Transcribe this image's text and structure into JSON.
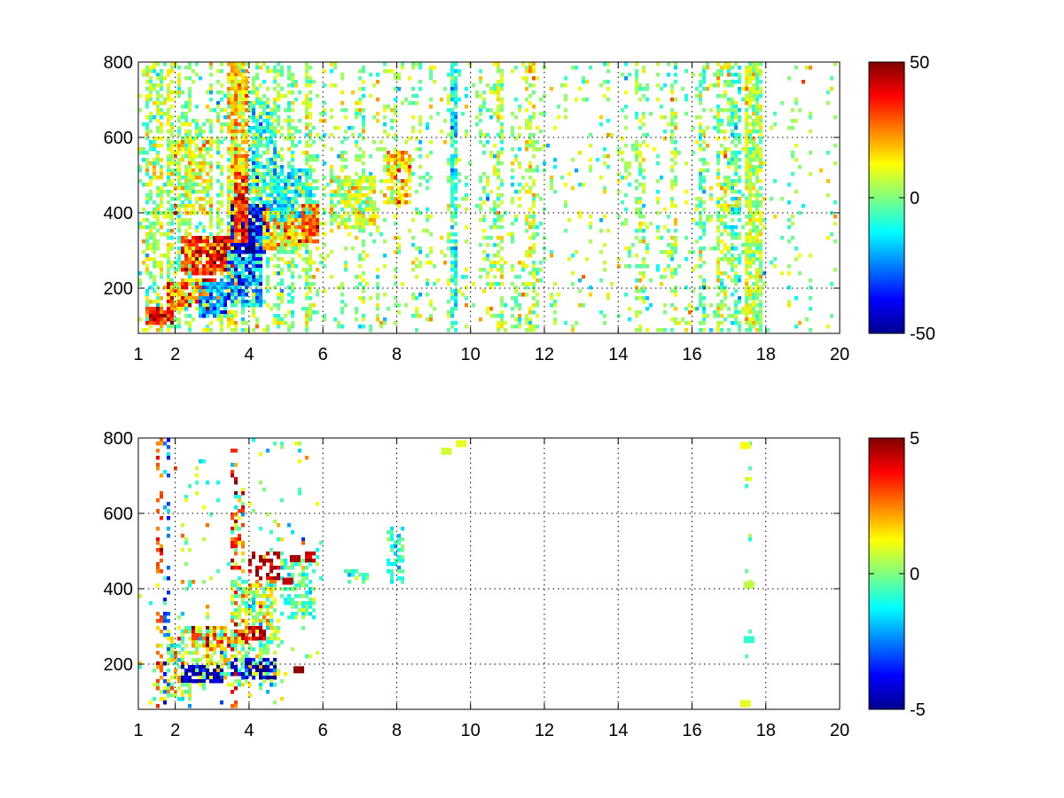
{
  "chart_data": [
    {
      "type": "heatmap",
      "title": "",
      "xlabel": "",
      "ylabel": "",
      "xlim": [
        1,
        20
      ],
      "ylim": [
        80,
        800
      ],
      "xticks": [
        1,
        2,
        4,
        6,
        8,
        10,
        12,
        14,
        16,
        18,
        20
      ],
      "xtick_labels": [
        "1",
        "2",
        "4",
        "6",
        "8",
        "10",
        "12",
        "14",
        "16",
        "18",
        "20"
      ],
      "yticks": [
        200,
        400,
        600,
        800
      ],
      "ytick_labels": [
        "200",
        "400",
        "600",
        "800"
      ],
      "grid": true,
      "colormap": "jet",
      "clim": [
        -50,
        50
      ],
      "colorbar_ticks": [
        -50,
        0,
        50
      ],
      "colorbar_labels": [
        "-50",
        "0",
        "50"
      ],
      "colorbar_position": "right",
      "seed": 11,
      "regions": [
        {
          "x": [
            1.2,
            2.0
          ],
          "y": [
            100,
            150
          ],
          "density": 0.9,
          "value": 35,
          "spread": 10
        },
        {
          "x": [
            1.8,
            3.2
          ],
          "y": [
            140,
            230
          ],
          "density": 0.85,
          "value": 25,
          "spread": 14
        },
        {
          "x": [
            2.2,
            3.6
          ],
          "y": [
            240,
            340
          ],
          "density": 0.9,
          "value": 32,
          "spread": 12
        },
        {
          "x": [
            2.0,
            3.0
          ],
          "y": [
            400,
            600
          ],
          "density": 0.6,
          "value": 12,
          "spread": 10
        },
        {
          "x": [
            2.6,
            3.4
          ],
          "y": [
            120,
            220
          ],
          "density": 0.8,
          "value": -25,
          "spread": 10
        },
        {
          "x": [
            3.4,
            4.4
          ],
          "y": [
            150,
            300
          ],
          "density": 0.8,
          "value": -20,
          "spread": 14
        },
        {
          "x": [
            3.5,
            4.6
          ],
          "y": [
            290,
            420
          ],
          "density": 0.9,
          "value": -40,
          "spread": 10
        },
        {
          "x": [
            3.6,
            4.0
          ],
          "y": [
            320,
            520
          ],
          "density": 0.85,
          "value": 32,
          "spread": 10
        },
        {
          "x": [
            3.5,
            4.0
          ],
          "y": [
            500,
            800
          ],
          "density": 0.8,
          "value": 18,
          "spread": 10
        },
        {
          "x": [
            4.0,
            4.7
          ],
          "y": [
            420,
            700
          ],
          "density": 0.55,
          "value": -8,
          "spread": 10
        },
        {
          "x": [
            4.4,
            5.5
          ],
          "y": [
            300,
            400
          ],
          "density": 0.85,
          "value": 18,
          "spread": 12
        },
        {
          "x": [
            4.6,
            5.8
          ],
          "y": [
            380,
            520
          ],
          "density": 0.7,
          "value": -12,
          "spread": 8
        },
        {
          "x": [
            5.4,
            5.9
          ],
          "y": [
            320,
            420
          ],
          "density": 0.9,
          "value": 28,
          "spread": 8
        },
        {
          "x": [
            6.2,
            7.4
          ],
          "y": [
            360,
            500
          ],
          "density": 0.6,
          "value": 8,
          "spread": 8
        },
        {
          "x": [
            7.7,
            8.4
          ],
          "y": [
            420,
            560
          ],
          "density": 0.7,
          "value": 15,
          "spread": 8
        }
      ],
      "stripe_columns": [
        {
          "x": 1.55,
          "density": 0.55,
          "value": 6
        },
        {
          "x": 1.85,
          "density": 0.5,
          "value": 8
        },
        {
          "x": 3.55,
          "density": 0.6,
          "value": 12
        },
        {
          "x": 5.6,
          "density": 0.5,
          "value": 4
        },
        {
          "x": 7.0,
          "density": 0.3,
          "value": 2
        },
        {
          "x": 9.55,
          "density": 0.75,
          "value": -10
        },
        {
          "x": 10.8,
          "density": 0.35,
          "value": 4
        },
        {
          "x": 11.6,
          "density": 0.35,
          "value": 8
        },
        {
          "x": 14.6,
          "density": 0.3,
          "value": 3
        },
        {
          "x": 15.5,
          "density": 0.35,
          "value": 2
        },
        {
          "x": 16.3,
          "density": 0.45,
          "value": -3
        },
        {
          "x": 16.8,
          "density": 0.45,
          "value": 5
        },
        {
          "x": 17.2,
          "density": 0.5,
          "value": -5
        },
        {
          "x": 17.5,
          "density": 0.75,
          "value": 8
        },
        {
          "x": 17.75,
          "density": 0.7,
          "value": 4
        }
      ],
      "background_density": [
        {
          "x": [
            1,
            6
          ],
          "density": 0.3
        },
        {
          "x": [
            6,
            12
          ],
          "density": 0.14
        },
        {
          "x": [
            12,
            16
          ],
          "density": 0.08
        },
        {
          "x": [
            16,
            18
          ],
          "density": 0.22
        },
        {
          "x": [
            18,
            20
          ],
          "density": 0.05
        }
      ],
      "background_value": 2,
      "background_spread": 9
    },
    {
      "type": "heatmap",
      "title": "",
      "xlabel": "",
      "ylabel": "",
      "xlim": [
        1,
        20
      ],
      "ylim": [
        80,
        800
      ],
      "xticks": [
        1,
        2,
        4,
        6,
        8,
        10,
        12,
        14,
        16,
        18,
        20
      ],
      "xtick_labels": [
        "1",
        "2",
        "4",
        "6",
        "8",
        "10",
        "12",
        "14",
        "16",
        "18",
        "20"
      ],
      "yticks": [
        200,
        400,
        600,
        800
      ],
      "ytick_labels": [
        "200",
        "400",
        "600",
        "800"
      ],
      "grid": true,
      "colormap": "jet",
      "clim": [
        -5,
        5
      ],
      "colorbar_ticks": [
        -5,
        0,
        5
      ],
      "colorbar_labels": [
        "-5",
        "0",
        "5"
      ],
      "colorbar_position": "right",
      "seed": 29,
      "regions": [
        {
          "x": [
            1.4,
            2.4
          ],
          "y": [
            100,
            150
          ],
          "density": 0.55,
          "value": 0.5,
          "spread": 1.0
        },
        {
          "x": [
            1.8,
            4.8
          ],
          "y": [
            140,
            300
          ],
          "density": 0.45,
          "value": 0.4,
          "spread": 1.2
        },
        {
          "x": [
            2.2,
            3.3
          ],
          "y": [
            150,
            200
          ],
          "density": 0.7,
          "value": -4.5,
          "spread": 0.6
        },
        {
          "x": [
            3.5,
            4.7
          ],
          "y": [
            160,
            220
          ],
          "density": 0.7,
          "value": -4.3,
          "spread": 0.7
        },
        {
          "x": [
            2.4,
            3.5
          ],
          "y": [
            240,
            300
          ],
          "density": 0.45,
          "value": 2.5,
          "spread": 1.5
        },
        {
          "x": [
            3.6,
            4.5
          ],
          "y": [
            250,
            300
          ],
          "density": 0.6,
          "value": 3.8,
          "spread": 1.0
        },
        {
          "x": [
            3.5,
            4.7
          ],
          "y": [
            300,
            420
          ],
          "density": 0.6,
          "value": 0.6,
          "spread": 1.3
        },
        {
          "x": [
            3.6,
            3.9
          ],
          "y": [
            420,
            680
          ],
          "density": 0.5,
          "value": 1.5,
          "spread": 1.8
        },
        {
          "x": [
            4.0,
            4.8
          ],
          "y": [
            420,
            500
          ],
          "density": 0.3,
          "value": 4.5,
          "spread": 0.5
        },
        {
          "x": [
            4.8,
            5.8
          ],
          "y": [
            320,
            480
          ],
          "density": 0.5,
          "value": -0.5,
          "spread": 0.8
        },
        {
          "x": [
            5.5,
            5.8
          ],
          "y": [
            470,
            500
          ],
          "density": 0.7,
          "value": 4.5,
          "spread": 0.3
        },
        {
          "x": [
            6.6,
            7.2
          ],
          "y": [
            410,
            450
          ],
          "density": 0.5,
          "value": -0.5,
          "spread": 0.7
        },
        {
          "x": [
            7.7,
            8.2
          ],
          "y": [
            410,
            560
          ],
          "density": 0.45,
          "value": -0.8,
          "spread": 0.6
        }
      ],
      "stripe_columns": [
        {
          "x": 1.6,
          "density": 0.25,
          "value": 3.0
        },
        {
          "x": 1.75,
          "density": 0.25,
          "value": -3.0
        },
        {
          "x": 3.6,
          "density": 0.35,
          "value": 3.5
        },
        {
          "x": 17.5,
          "density": 0.05,
          "value": 0.2
        }
      ],
      "background_density": [
        {
          "x": [
            1,
            6
          ],
          "density": 0.04
        },
        {
          "x": [
            6,
            20
          ],
          "density": 0.0
        }
      ],
      "background_value": 0,
      "background_spread": 1.2,
      "isolated_cells": [
        {
          "x": 5.3,
          "y": 185,
          "value": 4.8
        },
        {
          "x": 9.7,
          "y": 785,
          "value": 1.0
        },
        {
          "x": 9.3,
          "y": 765,
          "value": 0.8
        },
        {
          "x": 17.4,
          "y": 780,
          "value": 1.2
        },
        {
          "x": 17.5,
          "y": 410,
          "value": 0.6
        },
        {
          "x": 17.5,
          "y": 265,
          "value": -0.8
        },
        {
          "x": 17.4,
          "y": 95,
          "value": 1.0
        },
        {
          "x": 5.2,
          "y": 480,
          "value": 4.6
        },
        {
          "x": 5.0,
          "y": 420,
          "value": 4.4
        }
      ]
    }
  ]
}
